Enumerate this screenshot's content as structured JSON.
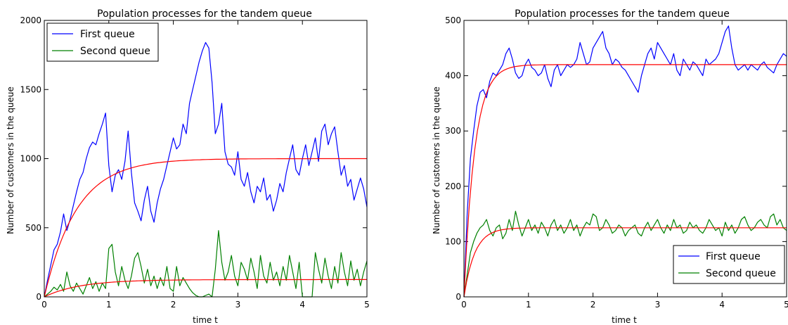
{
  "chart_data": [
    {
      "type": "line",
      "title": "Population processes for the tandem queue",
      "xlabel": "time t",
      "ylabel": "Number of customers in the queue",
      "xlim": [
        0,
        5
      ],
      "ylim": [
        0,
        2000
      ],
      "xticks": [
        "0",
        "1",
        "2",
        "3",
        "4",
        "5"
      ],
      "yticks": [
        "0",
        "500",
        "1000",
        "1500",
        "2000"
      ],
      "grid": false,
      "legend_position": "top-left",
      "legend": [
        "First queue",
        "Second queue"
      ],
      "series": [
        {
          "name": "First queue",
          "color": "#0000ff",
          "x": [
            0,
            0.05,
            0.1,
            0.15,
            0.2,
            0.25,
            0.3,
            0.35,
            0.4,
            0.45,
            0.5,
            0.55,
            0.6,
            0.65,
            0.7,
            0.75,
            0.8,
            0.85,
            0.9,
            0.95,
            1.0,
            1.05,
            1.1,
            1.15,
            1.2,
            1.25,
            1.3,
            1.35,
            1.4,
            1.45,
            1.5,
            1.55,
            1.6,
            1.65,
            1.7,
            1.75,
            1.8,
            1.85,
            1.9,
            1.95,
            2.0,
            2.05,
            2.1,
            2.15,
            2.2,
            2.25,
            2.3,
            2.35,
            2.4,
            2.45,
            2.5,
            2.55,
            2.6,
            2.65,
            2.7,
            2.75,
            2.8,
            2.85,
            2.9,
            2.95,
            3.0,
            3.05,
            3.1,
            3.15,
            3.2,
            3.25,
            3.3,
            3.35,
            3.4,
            3.45,
            3.5,
            3.55,
            3.6,
            3.65,
            3.7,
            3.75,
            3.8,
            3.85,
            3.9,
            3.95,
            4.0,
            4.05,
            4.1,
            4.15,
            4.2,
            4.25,
            4.3,
            4.35,
            4.4,
            4.45,
            4.5,
            4.55,
            4.6,
            4.65,
            4.7,
            4.75,
            4.8,
            4.85,
            4.9,
            4.95,
            5.0
          ],
          "values": [
            0,
            120,
            230,
            340,
            380,
            470,
            600,
            480,
            560,
            660,
            760,
            850,
            900,
            1000,
            1080,
            1120,
            1100,
            1180,
            1250,
            1330,
            950,
            760,
            880,
            920,
            850,
            980,
            1200,
            900,
            680,
            620,
            550,
            700,
            800,
            620,
            540,
            680,
            780,
            850,
            950,
            1050,
            1150,
            1070,
            1100,
            1250,
            1180,
            1400,
            1500,
            1600,
            1700,
            1780,
            1840,
            1800,
            1550,
            1180,
            1250,
            1400,
            1050,
            960,
            940,
            880,
            1050,
            850,
            800,
            900,
            760,
            680,
            800,
            760,
            860,
            700,
            740,
            620,
            700,
            820,
            760,
            900,
            1000,
            1100,
            920,
            880,
            1000,
            1100,
            950,
            1050,
            1150,
            980,
            1200,
            1250,
            1100,
            1180,
            1230,
            1050,
            880,
            950,
            800,
            850,
            700,
            780,
            860,
            780,
            650
          ]
        },
        {
          "name": "Second queue",
          "color": "#008000",
          "x": [
            0,
            0.05,
            0.1,
            0.15,
            0.2,
            0.25,
            0.3,
            0.35,
            0.4,
            0.45,
            0.5,
            0.55,
            0.6,
            0.65,
            0.7,
            0.75,
            0.8,
            0.85,
            0.9,
            0.95,
            1.0,
            1.05,
            1.1,
            1.15,
            1.2,
            1.25,
            1.3,
            1.35,
            1.4,
            1.45,
            1.5,
            1.55,
            1.6,
            1.65,
            1.7,
            1.75,
            1.8,
            1.85,
            1.9,
            1.95,
            2.0,
            2.05,
            2.1,
            2.15,
            2.2,
            2.25,
            2.3,
            2.35,
            2.4,
            2.45,
            2.5,
            2.55,
            2.6,
            2.65,
            2.7,
            2.75,
            2.8,
            2.85,
            2.9,
            2.95,
            3.0,
            3.05,
            3.1,
            3.15,
            3.2,
            3.25,
            3.3,
            3.35,
            3.4,
            3.45,
            3.5,
            3.55,
            3.6,
            3.65,
            3.7,
            3.75,
            3.8,
            3.85,
            3.9,
            3.95,
            4.0,
            4.05,
            4.1,
            4.15,
            4.2,
            4.25,
            4.3,
            4.35,
            4.4,
            4.45,
            4.5,
            4.55,
            4.6,
            4.65,
            4.7,
            4.75,
            4.8,
            4.85,
            4.9,
            4.95,
            5.0
          ],
          "values": [
            0,
            20,
            40,
            70,
            50,
            90,
            40,
            180,
            80,
            40,
            100,
            60,
            20,
            80,
            140,
            60,
            110,
            40,
            100,
            60,
            350,
            380,
            180,
            80,
            220,
            120,
            60,
            150,
            280,
            320,
            220,
            100,
            200,
            80,
            150,
            60,
            140,
            80,
            220,
            60,
            40,
            220,
            80,
            140,
            100,
            60,
            30,
            10,
            0,
            0,
            10,
            20,
            0,
            200,
            480,
            250,
            120,
            180,
            300,
            150,
            80,
            250,
            200,
            120,
            280,
            180,
            60,
            300,
            150,
            100,
            250,
            120,
            180,
            80,
            220,
            120,
            300,
            180,
            60,
            250,
            0,
            0,
            0,
            0,
            320,
            200,
            100,
            280,
            150,
            60,
            220,
            100,
            320,
            180,
            80,
            260,
            120,
            200,
            80,
            180,
            260
          ]
        },
        {
          "name": "",
          "color": "#ff0000",
          "model": "saturating",
          "asymptote": 1000,
          "rate": 2.0,
          "x_range": [
            0,
            5
          ]
        },
        {
          "name": "",
          "color": "#ff0000",
          "model": "saturating",
          "asymptote": 125,
          "rate": 1.8,
          "x_range": [
            0,
            5
          ]
        }
      ]
    },
    {
      "type": "line",
      "title": "Population processes for the tandem queue",
      "xlabel": "time t",
      "ylabel": "Number of customers in the queue",
      "xlim": [
        0,
        5
      ],
      "ylim": [
        0,
        500
      ],
      "xticks": [
        "0",
        "1",
        "2",
        "3",
        "4",
        "5"
      ],
      "yticks": [
        "0",
        "100",
        "200",
        "300",
        "400",
        "500"
      ],
      "grid": false,
      "legend_position": "bottom-right",
      "legend": [
        "First queue",
        "Second queue"
      ],
      "series": [
        {
          "name": "First queue",
          "color": "#0000ff",
          "x": [
            0,
            0.05,
            0.1,
            0.15,
            0.2,
            0.25,
            0.3,
            0.35,
            0.4,
            0.45,
            0.5,
            0.55,
            0.6,
            0.65,
            0.7,
            0.75,
            0.8,
            0.85,
            0.9,
            0.95,
            1.0,
            1.05,
            1.1,
            1.15,
            1.2,
            1.25,
            1.3,
            1.35,
            1.4,
            1.45,
            1.5,
            1.55,
            1.6,
            1.65,
            1.7,
            1.75,
            1.8,
            1.85,
            1.9,
            1.95,
            2.0,
            2.05,
            2.1,
            2.15,
            2.2,
            2.25,
            2.3,
            2.35,
            2.4,
            2.45,
            2.5,
            2.55,
            2.6,
            2.65,
            2.7,
            2.75,
            2.8,
            2.85,
            2.9,
            2.95,
            3.0,
            3.05,
            3.1,
            3.15,
            3.2,
            3.25,
            3.3,
            3.35,
            3.4,
            3.45,
            3.5,
            3.55,
            3.6,
            3.65,
            3.7,
            3.75,
            3.8,
            3.85,
            3.9,
            3.95,
            4.0,
            4.05,
            4.1,
            4.15,
            4.2,
            4.25,
            4.3,
            4.35,
            4.4,
            4.45,
            4.5,
            4.55,
            4.6,
            4.65,
            4.7,
            4.75,
            4.8,
            4.85,
            4.9,
            4.95,
            5.0
          ],
          "values": [
            0,
            150,
            250,
            300,
            345,
            370,
            375,
            360,
            390,
            405,
            400,
            410,
            420,
            440,
            450,
            430,
            405,
            395,
            400,
            420,
            430,
            415,
            410,
            400,
            405,
            420,
            395,
            380,
            410,
            420,
            400,
            410,
            420,
            415,
            420,
            430,
            460,
            440,
            420,
            425,
            450,
            460,
            470,
            480,
            450,
            440,
            420,
            430,
            425,
            415,
            410,
            400,
            390,
            380,
            370,
            400,
            420,
            440,
            450,
            430,
            460,
            450,
            440,
            430,
            420,
            440,
            410,
            400,
            430,
            420,
            410,
            425,
            420,
            410,
            400,
            430,
            420,
            425,
            430,
            440,
            460,
            480,
            490,
            450,
            420,
            410,
            415,
            420,
            410,
            420,
            415,
            410,
            420,
            425,
            415,
            410,
            405,
            420,
            430,
            440,
            435
          ]
        },
        {
          "name": "Second queue",
          "color": "#008000",
          "x": [
            0,
            0.05,
            0.1,
            0.15,
            0.2,
            0.25,
            0.3,
            0.35,
            0.4,
            0.45,
            0.5,
            0.55,
            0.6,
            0.65,
            0.7,
            0.75,
            0.8,
            0.85,
            0.9,
            0.95,
            1.0,
            1.05,
            1.1,
            1.15,
            1.2,
            1.25,
            1.3,
            1.35,
            1.4,
            1.45,
            1.5,
            1.55,
            1.6,
            1.65,
            1.7,
            1.75,
            1.8,
            1.85,
            1.9,
            1.95,
            2.0,
            2.05,
            2.1,
            2.15,
            2.2,
            2.25,
            2.3,
            2.35,
            2.4,
            2.45,
            2.5,
            2.55,
            2.6,
            2.65,
            2.7,
            2.75,
            2.8,
            2.85,
            2.9,
            2.95,
            3.0,
            3.05,
            3.1,
            3.15,
            3.2,
            3.25,
            3.3,
            3.35,
            3.4,
            3.45,
            3.5,
            3.55,
            3.6,
            3.65,
            3.7,
            3.75,
            3.8,
            3.85,
            3.9,
            3.95,
            4.0,
            4.05,
            4.1,
            4.15,
            4.2,
            4.25,
            4.3,
            4.35,
            4.4,
            4.45,
            4.5,
            4.55,
            4.6,
            4.65,
            4.7,
            4.75,
            4.8,
            4.85,
            4.9,
            4.95,
            5.0
          ],
          "values": [
            0,
            40,
            80,
            100,
            115,
            125,
            130,
            140,
            120,
            110,
            125,
            130,
            105,
            115,
            140,
            120,
            155,
            130,
            110,
            125,
            140,
            120,
            130,
            115,
            135,
            125,
            110,
            130,
            140,
            120,
            130,
            115,
            125,
            140,
            120,
            130,
            110,
            125,
            135,
            130,
            150,
            145,
            120,
            125,
            140,
            130,
            115,
            120,
            130,
            125,
            110,
            120,
            125,
            130,
            115,
            110,
            125,
            135,
            120,
            130,
            140,
            125,
            115,
            130,
            120,
            140,
            125,
            130,
            115,
            120,
            135,
            125,
            130,
            120,
            115,
            125,
            140,
            130,
            120,
            125,
            110,
            135,
            120,
            130,
            115,
            125,
            140,
            145,
            130,
            120,
            125,
            135,
            140,
            130,
            125,
            145,
            150,
            130,
            140,
            125,
            120
          ]
        },
        {
          "name": "",
          "color": "#ff0000",
          "model": "saturating",
          "asymptote": 420,
          "rate": 6.0,
          "x_range": [
            0,
            5
          ]
        },
        {
          "name": "",
          "color": "#ff0000",
          "model": "saturating",
          "asymptote": 125,
          "rate": 6.0,
          "x_range": [
            0,
            5
          ]
        }
      ]
    }
  ]
}
